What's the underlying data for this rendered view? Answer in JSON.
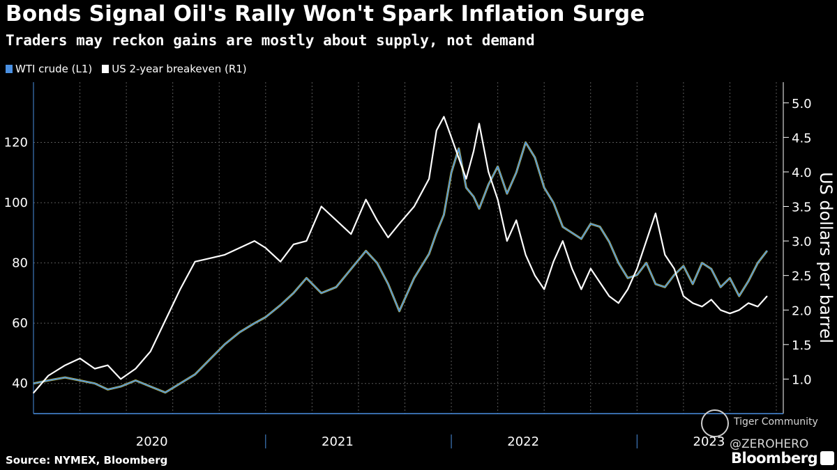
{
  "header": {
    "title": "Bonds Signal Oil's Rally Won't Spark Inflation Surge",
    "subtitle": "Traders may reckon gains are mostly about supply, not demand"
  },
  "legend": [
    {
      "label": "WTI crude (L1)",
      "color": "#4a90e2"
    },
    {
      "label": "US 2-year breakeven (R1)",
      "color": "#ffffff"
    }
  ],
  "footer": {
    "source": "Source: NYMEX, Bloomberg",
    "brand": "Bloomberg",
    "watermark": "Tiger Community",
    "watermark_user": "@ZEROHERO"
  },
  "colors": {
    "background": "#000000",
    "wti": "#4a90e2",
    "wti_highlight": "#f2e64a",
    "breakeven": "#ffffff",
    "grid": "#5a5a5a"
  },
  "chart_data": {
    "type": "line",
    "title": "Bonds Signal Oil's Rally Won't Spark Inflation Surge",
    "x_unit": "year (decimal)",
    "xlim": [
      2019.75,
      2023.75
    ],
    "x_tick_labels": [
      {
        "label": "2020",
        "at": 2020.0
      },
      {
        "label": "2021",
        "at": 2021.0
      },
      {
        "label": "2022",
        "at": 2022.0
      },
      {
        "label": "2023",
        "at": 2023.0
      }
    ],
    "left_axis": {
      "label": "",
      "ylim": [
        30,
        140
      ],
      "ticks": [
        40,
        60,
        80,
        100,
        120
      ]
    },
    "right_axis": {
      "label": "US dollars per barrel",
      "ylim": [
        0.5,
        5.3
      ],
      "ticks": [
        1.0,
        1.5,
        2.0,
        2.5,
        3.0,
        3.5,
        4.0,
        4.5,
        5.0
      ]
    },
    "series": [
      {
        "name": "WTI crude (L1)",
        "axis": "left",
        "x": [
          2019.75,
          2019.83,
          2019.92,
          2020.0,
          2020.08,
          2020.15,
          2020.22,
          2020.3,
          2020.38,
          2020.46,
          2020.54,
          2020.62,
          2020.7,
          2020.78,
          2020.86,
          2020.94,
          2021.0,
          2021.08,
          2021.15,
          2021.22,
          2021.3,
          2021.38,
          2021.46,
          2021.54,
          2021.6,
          2021.66,
          2021.72,
          2021.8,
          2021.88,
          2021.92,
          2021.96,
          2022.0,
          2022.04,
          2022.08,
          2022.12,
          2022.15,
          2022.2,
          2022.25,
          2022.3,
          2022.35,
          2022.4,
          2022.45,
          2022.5,
          2022.55,
          2022.6,
          2022.65,
          2022.7,
          2022.75,
          2022.8,
          2022.85,
          2022.9,
          2022.95,
          2023.0,
          2023.05,
          2023.1,
          2023.15,
          2023.2,
          2023.25,
          2023.3,
          2023.35,
          2023.4,
          2023.45,
          2023.5,
          2023.55,
          2023.6,
          2023.65,
          2023.7
        ],
        "values": [
          40,
          41,
          42,
          41,
          40,
          38,
          39,
          41,
          39,
          37,
          40,
          43,
          48,
          53,
          57,
          60,
          62,
          66,
          70,
          75,
          70,
          72,
          78,
          84,
          80,
          73,
          64,
          75,
          83,
          90,
          96,
          110,
          118,
          105,
          102,
          98,
          106,
          112,
          103,
          110,
          120,
          115,
          105,
          100,
          92,
          90,
          88,
          93,
          92,
          87,
          80,
          75,
          76,
          80,
          73,
          72,
          76,
          79,
          73,
          80,
          78,
          72,
          75,
          69,
          74,
          80,
          84
        ]
      },
      {
        "name": "US 2-year breakeven (R1)",
        "axis": "right",
        "x": [
          2019.75,
          2019.83,
          2019.92,
          2020.0,
          2020.08,
          2020.15,
          2020.22,
          2020.3,
          2020.38,
          2020.46,
          2020.54,
          2020.62,
          2020.7,
          2020.78,
          2020.86,
          2020.94,
          2021.0,
          2021.08,
          2021.15,
          2021.22,
          2021.3,
          2021.38,
          2021.46,
          2021.54,
          2021.6,
          2021.66,
          2021.72,
          2021.8,
          2021.88,
          2021.92,
          2021.96,
          2022.0,
          2022.04,
          2022.08,
          2022.12,
          2022.15,
          2022.2,
          2022.25,
          2022.3,
          2022.35,
          2022.4,
          2022.45,
          2022.5,
          2022.55,
          2022.6,
          2022.65,
          2022.7,
          2022.75,
          2022.8,
          2022.85,
          2022.9,
          2022.95,
          2023.0,
          2023.05,
          2023.1,
          2023.15,
          2023.2,
          2023.25,
          2023.3,
          2023.35,
          2023.4,
          2023.45,
          2023.5,
          2023.55,
          2023.6,
          2023.65,
          2023.7
        ],
        "values": [
          0.8,
          1.05,
          1.2,
          1.3,
          1.15,
          1.2,
          1.0,
          1.15,
          1.4,
          1.85,
          2.3,
          2.7,
          2.75,
          2.8,
          2.9,
          3.0,
          2.9,
          2.7,
          2.95,
          3.0,
          3.5,
          3.3,
          3.1,
          3.6,
          3.3,
          3.05,
          3.25,
          3.5,
          3.9,
          4.6,
          4.8,
          4.5,
          4.2,
          3.9,
          4.3,
          4.7,
          4.0,
          3.6,
          3.0,
          3.3,
          2.8,
          2.5,
          2.3,
          2.7,
          3.0,
          2.6,
          2.3,
          2.6,
          2.4,
          2.2,
          2.1,
          2.3,
          2.6,
          3.0,
          3.4,
          2.8,
          2.6,
          2.2,
          2.1,
          2.05,
          2.15,
          2.0,
          1.95,
          2.0,
          2.1,
          2.05,
          2.2
        ]
      }
    ]
  }
}
